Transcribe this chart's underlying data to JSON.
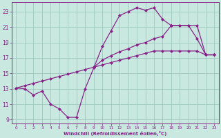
{
  "bg_color": "#c8e8e0",
  "grid_color": "#a0c8c0",
  "line_color": "#882288",
  "xlabel": "Windchill (Refroidissement éolien,°C)",
  "xlim": [
    -0.5,
    23.5
  ],
  "ylim": [
    8.5,
    24.2
  ],
  "xticks": [
    0,
    1,
    2,
    3,
    4,
    5,
    6,
    7,
    8,
    9,
    10,
    11,
    12,
    13,
    14,
    15,
    16,
    17,
    18,
    19,
    20,
    21,
    22,
    23
  ],
  "yticks": [
    9,
    11,
    13,
    15,
    17,
    19,
    21,
    23
  ],
  "curve1_x": [
    0,
    1,
    2,
    3,
    4,
    5,
    6,
    7,
    8,
    9,
    10,
    11,
    12,
    13,
    14,
    15,
    16,
    17,
    18,
    19,
    20,
    21,
    22,
    23
  ],
  "curve1_y": [
    13.1,
    13.0,
    12.2,
    12.7,
    11.0,
    10.4,
    9.3,
    9.3,
    13.0,
    15.7,
    18.5,
    20.5,
    22.5,
    23.0,
    23.5,
    23.2,
    23.5,
    22.0,
    21.2,
    21.2,
    21.2,
    19.5,
    17.4,
    17.4
  ],
  "curve2_x": [
    0,
    1,
    2,
    3,
    4,
    5,
    6,
    7,
    8,
    9,
    10,
    11,
    12,
    13,
    14,
    15,
    16,
    17,
    18,
    19,
    20,
    21,
    22,
    23
  ],
  "curve2_y": [
    13.1,
    13.4,
    13.7,
    14.0,
    14.3,
    14.6,
    14.9,
    15.2,
    15.5,
    15.8,
    16.1,
    16.4,
    16.7,
    17.0,
    17.3,
    17.6,
    17.9,
    17.9,
    17.9,
    17.9,
    17.9,
    17.9,
    17.4,
    17.4
  ],
  "curve3_x": [
    9,
    10,
    11,
    12,
    13,
    14,
    15,
    16,
    17,
    18,
    19,
    20,
    21,
    22,
    23
  ],
  "curve3_y": [
    15.8,
    16.7,
    17.3,
    17.8,
    18.2,
    18.7,
    19.0,
    19.5,
    19.8,
    21.2,
    21.2,
    21.2,
    21.2,
    17.4,
    17.4
  ],
  "markersize": 2.5,
  "linewidth": 0.9
}
